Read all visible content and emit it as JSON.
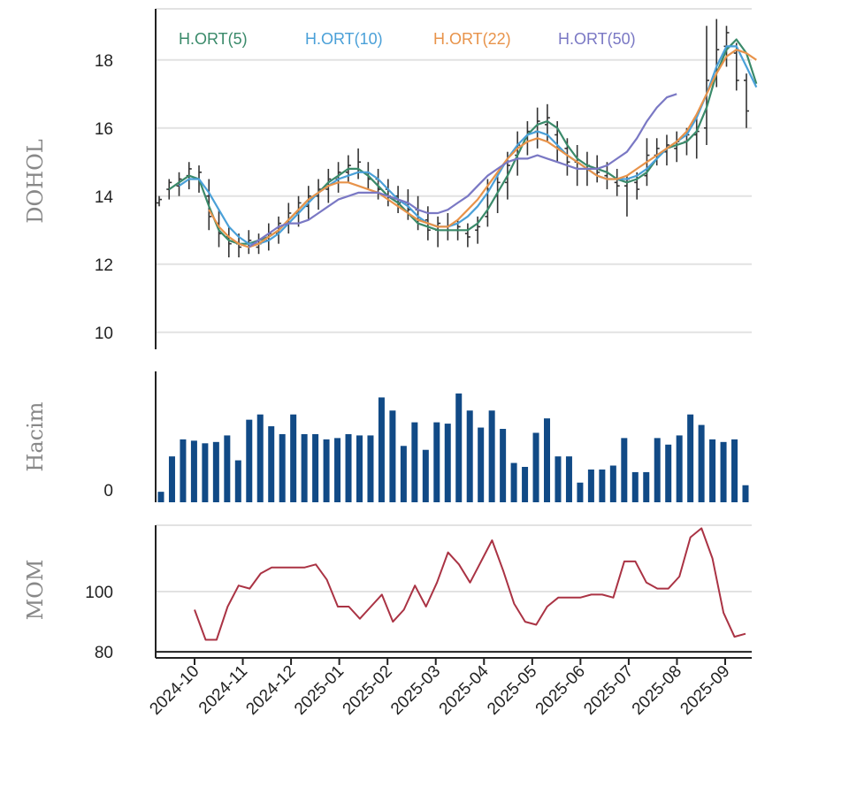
{
  "chart_data": [
    {
      "type": "ohlc",
      "ylabel": "DOHOL",
      "ylim": [
        9.5,
        19.5
      ],
      "yticks": [
        "10",
        "12",
        "14",
        "16",
        "18"
      ],
      "grid": true,
      "legend_position": "top",
      "ohlc": [
        [
          13.8,
          14.0,
          13.7,
          13.9
        ],
        [
          14.2,
          14.5,
          13.9,
          14.4
        ],
        [
          14.3,
          14.7,
          14.0,
          14.5
        ],
        [
          14.6,
          15.0,
          14.2,
          14.8
        ],
        [
          14.5,
          14.9,
          14.1,
          14.7
        ],
        [
          14.0,
          14.5,
          13.0,
          13.4
        ],
        [
          13.2,
          13.6,
          12.5,
          12.9
        ],
        [
          12.8,
          13.1,
          12.2,
          12.6
        ],
        [
          12.6,
          12.9,
          12.2,
          12.5
        ],
        [
          12.6,
          13.0,
          12.3,
          12.7
        ],
        [
          12.5,
          12.9,
          12.3,
          12.6
        ],
        [
          12.7,
          13.2,
          12.4,
          12.9
        ],
        [
          12.9,
          13.4,
          12.6,
          13.2
        ],
        [
          13.2,
          13.8,
          12.9,
          13.5
        ],
        [
          13.5,
          14.0,
          13.1,
          13.8
        ],
        [
          13.7,
          14.3,
          13.3,
          14.0
        ],
        [
          14.0,
          14.5,
          13.6,
          14.2
        ],
        [
          14.2,
          14.8,
          13.8,
          14.5
        ],
        [
          14.5,
          15.0,
          14.1,
          14.7
        ],
        [
          14.7,
          15.2,
          14.4,
          14.9
        ],
        [
          14.8,
          15.4,
          14.5,
          15.0
        ],
        [
          14.7,
          15.0,
          14.2,
          14.5
        ],
        [
          14.5,
          14.8,
          13.9,
          14.2
        ],
        [
          14.2,
          14.5,
          13.7,
          14.0
        ],
        [
          14.0,
          14.3,
          13.5,
          13.8
        ],
        [
          13.8,
          14.2,
          13.3,
          13.6
        ],
        [
          13.6,
          14.0,
          13.0,
          13.3
        ],
        [
          13.3,
          13.7,
          12.7,
          13.0
        ],
        [
          13.0,
          13.4,
          12.5,
          13.2
        ],
        [
          13.1,
          13.5,
          12.7,
          13.0
        ],
        [
          13.0,
          13.3,
          12.7,
          13.1
        ],
        [
          12.9,
          13.2,
          12.5,
          12.8
        ],
        [
          13.0,
          13.4,
          12.6,
          13.1
        ],
        [
          13.4,
          14.5,
          13.1,
          14.2
        ],
        [
          14.0,
          14.7,
          13.5,
          14.4
        ],
        [
          14.4,
          15.3,
          13.9,
          14.9
        ],
        [
          15.2,
          15.9,
          14.6,
          15.5
        ],
        [
          15.7,
          16.2,
          15.2,
          15.9
        ],
        [
          15.9,
          16.6,
          15.4,
          16.2
        ],
        [
          16.1,
          16.7,
          15.6,
          16.3
        ],
        [
          15.8,
          16.2,
          15.0,
          15.4
        ],
        [
          15.4,
          15.7,
          14.6,
          15.0
        ],
        [
          15.0,
          15.5,
          14.3,
          14.8
        ],
        [
          14.8,
          15.3,
          14.3,
          14.9
        ],
        [
          14.8,
          15.2,
          14.4,
          14.7
        ],
        [
          14.6,
          15.0,
          14.2,
          14.5
        ],
        [
          14.4,
          14.8,
          14.0,
          14.3
        ],
        [
          14.3,
          14.6,
          13.4,
          14.5
        ],
        [
          14.4,
          14.7,
          13.9,
          14.2
        ],
        [
          14.6,
          15.7,
          14.3,
          15.2
        ],
        [
          15.2,
          15.7,
          14.9,
          15.4
        ],
        [
          15.3,
          15.8,
          14.9,
          15.5
        ],
        [
          15.4,
          15.9,
          15.0,
          15.6
        ],
        [
          15.6,
          16.0,
          15.2,
          15.8
        ],
        [
          15.8,
          16.3,
          15.1,
          15.9
        ],
        [
          16.0,
          19.0,
          15.5,
          17.4
        ],
        [
          17.5,
          19.2,
          17.2,
          18.3
        ],
        [
          18.4,
          19.0,
          17.8,
          18.8
        ],
        [
          18.2,
          18.5,
          17.1,
          17.4
        ],
        [
          17.4,
          17.6,
          16.0,
          16.5
        ]
      ],
      "series": [
        {
          "name": "H.ORT(5)",
          "color": "#3a8a6a",
          "x_start": 1,
          "values": [
            14.2,
            14.4,
            14.6,
            14.5,
            13.7,
            13.0,
            12.7,
            12.6,
            12.6,
            12.7,
            12.8,
            13.0,
            13.3,
            13.6,
            13.9,
            14.1,
            14.4,
            14.6,
            14.8,
            14.8,
            14.6,
            14.3,
            14.0,
            13.8,
            13.5,
            13.2,
            13.1,
            13.0,
            13.0,
            13.0,
            13.0,
            13.2,
            13.6,
            14.1,
            14.6,
            15.2,
            15.8,
            16.1,
            16.2,
            16.0,
            15.5,
            15.1,
            14.9,
            14.8,
            14.7,
            14.5,
            14.4,
            14.5,
            14.7,
            15.1,
            15.4,
            15.5,
            15.6,
            15.9,
            16.6,
            17.6,
            18.3,
            18.6,
            18.2,
            17.3
          ]
        },
        {
          "name": "H.ORT(10)",
          "color": "#4aa0d8",
          "x_start": 2,
          "values": [
            14.3,
            14.5,
            14.5,
            14.1,
            13.6,
            13.1,
            12.8,
            12.6,
            12.6,
            12.7,
            12.9,
            13.2,
            13.5,
            13.8,
            14.1,
            14.3,
            14.5,
            14.6,
            14.7,
            14.7,
            14.5,
            14.2,
            13.9,
            13.7,
            13.4,
            13.2,
            13.1,
            13.1,
            13.2,
            13.4,
            13.7,
            14.1,
            14.6,
            15.1,
            15.5,
            15.8,
            15.9,
            15.8,
            15.5,
            15.2,
            15.0,
            14.8,
            14.6,
            14.5,
            14.5,
            14.5,
            14.6,
            14.8,
            15.1,
            15.4,
            15.6,
            15.8,
            16.3,
            17.0,
            17.8,
            18.4,
            18.4,
            17.8,
            17.2
          ]
        },
        {
          "name": "H.ORT(22)",
          "color": "#e8934a",
          "x_start": 5,
          "values": [
            13.6,
            13.1,
            12.8,
            12.6,
            12.5,
            12.6,
            12.8,
            13.0,
            13.3,
            13.6,
            13.9,
            14.1,
            14.3,
            14.4,
            14.4,
            14.3,
            14.2,
            14.1,
            13.9,
            13.7,
            13.5,
            13.3,
            13.2,
            13.1,
            13.1,
            13.3,
            13.6,
            13.9,
            14.3,
            14.7,
            15.1,
            15.4,
            15.6,
            15.7,
            15.6,
            15.4,
            15.2,
            15.0,
            14.8,
            14.6,
            14.5,
            14.5,
            14.6,
            14.8,
            15.0,
            15.2,
            15.4,
            15.6,
            15.9,
            16.4,
            17.0,
            17.6,
            18.1,
            18.3,
            18.2,
            18.0
          ]
        },
        {
          "name": "H.ORT(50)",
          "color": "#7a78c4",
          "x_start": 9,
          "values": [
            12.5,
            12.7,
            12.9,
            13.1,
            13.2,
            13.2,
            13.3,
            13.5,
            13.7,
            13.9,
            14.0,
            14.1,
            14.1,
            14.1,
            14.0,
            13.9,
            13.8,
            13.6,
            13.5,
            13.5,
            13.6,
            13.8,
            14.0,
            14.3,
            14.6,
            14.8,
            15.0,
            15.1,
            15.1,
            15.2,
            15.1,
            15.0,
            14.9,
            14.8,
            14.8,
            14.8,
            14.9,
            15.1,
            15.3,
            15.7,
            16.2,
            16.6,
            16.9,
            17.0
          ]
        }
      ]
    },
    {
      "type": "bar",
      "ylabel": "Hacim",
      "yticks": [
        "0"
      ],
      "color": "#114a86",
      "values": [
        8,
        35,
        48,
        47,
        45,
        46,
        51,
        32,
        63,
        67,
        58,
        52,
        67,
        52,
        52,
        48,
        49,
        52,
        51,
        51,
        80,
        70,
        43,
        61,
        40,
        61,
        60,
        83,
        70,
        57,
        70,
        56,
        30,
        27,
        53,
        64,
        35,
        35,
        15,
        25,
        25,
        28,
        49,
        23,
        23,
        49,
        44,
        51,
        67,
        59,
        48,
        46,
        48,
        13
      ]
    },
    {
      "type": "line",
      "ylabel": "MOM",
      "ylim": [
        78,
        122
      ],
      "yticks": [
        "80",
        "100"
      ],
      "color": "#aa3344",
      "values": [
        94,
        84,
        84,
        95,
        102,
        101,
        106,
        108,
        108,
        108,
        108,
        109,
        104,
        95,
        95,
        91,
        95,
        99,
        90,
        94,
        102,
        95,
        103,
        113,
        109,
        103,
        110,
        117,
        107,
        96,
        90,
        89,
        95,
        98,
        98,
        98,
        99,
        99,
        98,
        110,
        110,
        103,
        101,
        101,
        105,
        118,
        121,
        111,
        93,
        85,
        86
      ]
    }
  ],
  "x_axis": {
    "labels": [
      "2024-10",
      "2024-11",
      "2024-12",
      "2025-01",
      "2025-02",
      "2025-03",
      "2025-04",
      "2025-05",
      "2025-06",
      "2025-07",
      "2025-08",
      "2025-09"
    ]
  }
}
